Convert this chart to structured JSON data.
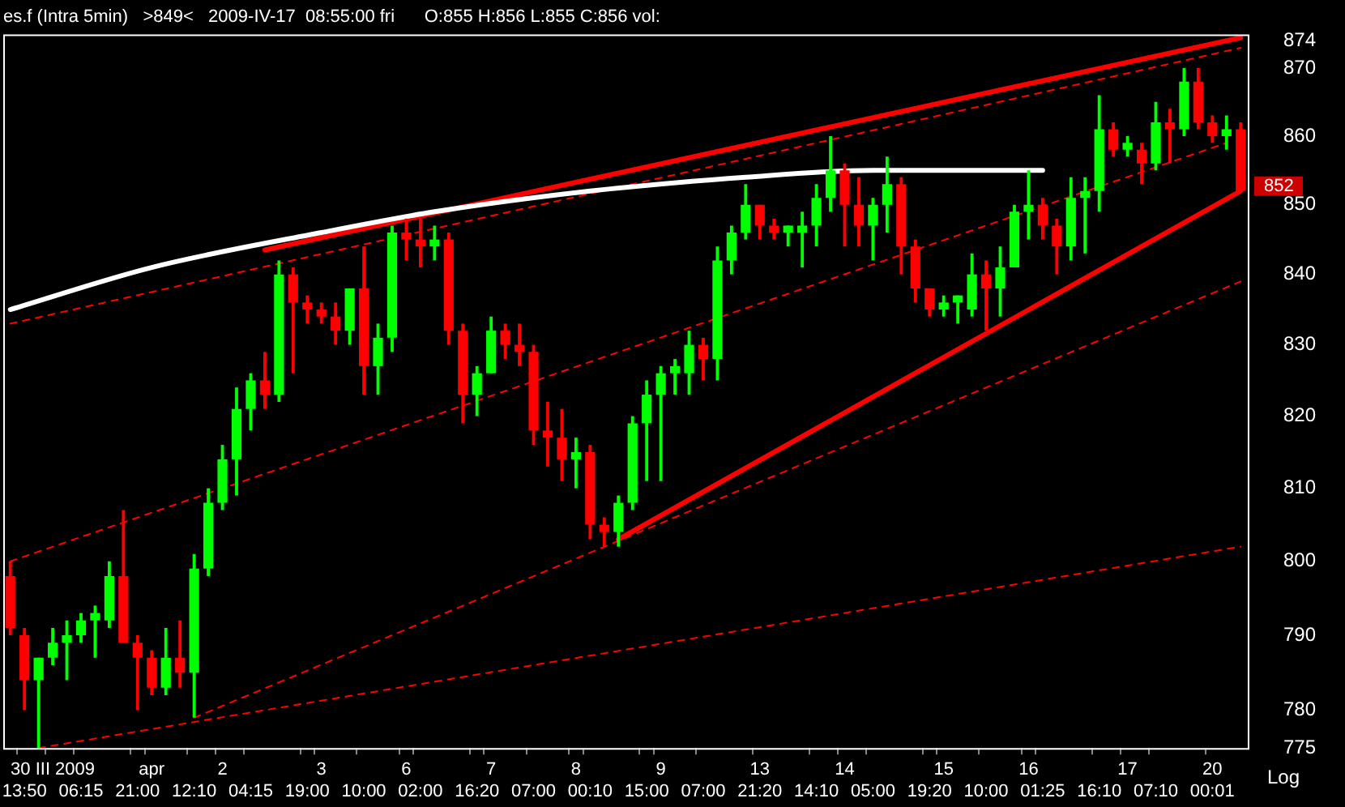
{
  "chart_data": {
    "type": "candlestick",
    "title": "es.f (Intra 5min)   >849<   2009-IV-17  08:55:00 fri      O:855 H:856 L:855 C:856 vol:",
    "categories": [
      null,
      "\n13:50",
      null,
      "30 III 2009\n",
      null,
      "\n06:15",
      null,
      null,
      null,
      "\n21:00",
      "apr\n",
      null,
      null,
      "\n12:10",
      null,
      "2\n",
      null,
      "\n04:15",
      null,
      null,
      null,
      "\n19:00",
      "3\n",
      null,
      null,
      "\n10:00",
      null,
      null,
      "6\n",
      "\n02:00",
      null,
      null,
      null,
      "\n16:20",
      "7\n",
      null,
      null,
      "\n07:00",
      null,
      null,
      "8\n",
      "\n00:10",
      null,
      null,
      null,
      "\n15:00",
      "9\n",
      null,
      null,
      "\n07:00",
      null,
      null,
      null,
      "13\n21:20",
      null,
      null,
      null,
      "\n14:10",
      null,
      "14\n",
      null,
      "\n05:00",
      null,
      null,
      null,
      "\n19:20",
      "15\n",
      null,
      null,
      "\n10:00",
      null,
      null,
      "16\n",
      "\n01:25",
      null,
      null,
      null,
      "\n16:10",
      null,
      "17\n",
      null,
      "\n07:10",
      null,
      null,
      null,
      "20\n00:01",
      null,
      null
    ],
    "ohlc": [
      [
        798,
        800,
        790,
        791
      ],
      [
        790,
        791,
        780,
        784
      ],
      [
        784,
        787,
        775,
        787
      ],
      [
        787,
        791,
        786,
        789
      ],
      [
        789,
        792,
        784,
        790
      ],
      [
        790,
        793,
        789,
        792
      ],
      [
        792,
        794,
        787,
        793
      ],
      [
        792,
        800,
        791,
        798
      ],
      [
        798,
        807,
        789,
        789
      ],
      [
        789,
        790,
        780,
        787
      ],
      [
        787,
        788,
        782,
        783
      ],
      [
        783,
        791,
        782,
        787
      ],
      [
        787,
        792,
        783,
        785
      ],
      [
        785,
        801,
        779,
        799
      ],
      [
        799,
        810,
        798,
        808
      ],
      [
        808,
        816,
        807,
        814
      ],
      [
        814,
        824,
        809,
        821
      ],
      [
        821,
        826,
        818,
        825
      ],
      [
        825,
        829,
        821,
        823
      ],
      [
        823,
        842,
        822,
        840
      ],
      [
        840,
        841,
        826,
        836
      ],
      [
        836,
        837,
        833,
        835
      ],
      [
        835,
        836,
        833,
        834
      ],
      [
        834,
        836,
        830,
        832
      ],
      [
        832,
        838,
        830,
        838
      ],
      [
        838,
        844,
        823,
        827
      ],
      [
        827,
        833,
        823,
        831
      ],
      [
        831,
        847,
        829,
        846
      ],
      [
        846,
        848,
        842,
        845
      ],
      [
        845,
        848,
        841,
        844
      ],
      [
        844,
        847,
        842,
        845
      ],
      [
        845,
        846,
        830,
        832
      ],
      [
        832,
        833,
        819,
        823
      ],
      [
        823,
        827,
        820,
        826
      ],
      [
        826,
        834,
        826,
        832
      ],
      [
        832,
        833,
        828,
        830
      ],
      [
        830,
        833,
        827,
        829
      ],
      [
        829,
        830,
        816,
        818
      ],
      [
        818,
        822,
        813,
        817
      ],
      [
        817,
        821,
        811,
        814
      ],
      [
        814,
        817,
        810,
        815
      ],
      [
        815,
        816,
        803,
        805
      ],
      [
        805,
        806,
        802,
        804
      ],
      [
        804,
        809,
        802,
        808
      ],
      [
        808,
        820,
        807,
        819
      ],
      [
        819,
        825,
        811,
        823
      ],
      [
        823,
        827,
        811,
        826
      ],
      [
        826,
        828,
        823,
        827
      ],
      [
        826,
        832,
        823,
        830
      ],
      [
        830,
        831,
        825,
        828
      ],
      [
        828,
        844,
        825,
        842
      ],
      [
        842,
        847,
        840,
        846
      ],
      [
        846,
        853,
        845,
        850
      ],
      [
        850,
        850,
        845,
        847
      ],
      [
        847,
        848,
        845,
        846
      ],
      [
        846,
        847,
        844,
        847
      ],
      [
        846,
        849,
        841,
        847
      ],
      [
        847,
        853,
        844,
        851
      ],
      [
        851,
        860,
        849,
        855
      ],
      [
        855,
        856,
        844,
        850
      ],
      [
        850,
        854,
        844,
        847
      ],
      [
        847,
        851,
        842,
        850
      ],
      [
        850,
        857,
        846,
        853
      ],
      [
        853,
        854,
        840,
        844
      ],
      [
        844,
        845,
        836,
        838
      ],
      [
        838,
        838,
        834,
        835
      ],
      [
        835,
        837,
        834,
        836
      ],
      [
        836,
        837,
        833,
        837
      ],
      [
        835,
        843,
        834,
        840
      ],
      [
        840,
        842,
        832,
        838
      ],
      [
        838,
        844,
        834,
        841
      ],
      [
        841,
        850,
        841,
        849
      ],
      [
        849,
        855,
        845,
        850
      ],
      [
        850,
        851,
        845,
        847
      ],
      [
        847,
        848,
        840,
        844
      ],
      [
        844,
        854,
        842,
        851
      ],
      [
        851,
        854,
        843,
        852
      ],
      [
        852,
        866,
        849,
        861
      ],
      [
        861,
        862,
        857,
        858
      ],
      [
        858,
        860,
        857,
        859
      ],
      [
        858,
        859,
        853,
        856
      ],
      [
        856,
        865,
        855,
        862
      ],
      [
        862,
        864,
        856,
        861
      ],
      [
        861,
        870,
        860,
        868
      ],
      [
        868,
        870,
        861,
        862
      ],
      [
        862,
        863,
        859,
        860
      ],
      [
        860,
        863,
        858,
        861
      ],
      [
        861,
        862,
        852,
        852
      ]
    ],
    "colors": [
      "#ff0000",
      "#ff0000",
      "#00ff00",
      "#00ff00",
      "#00ff00",
      "#00ff00",
      "#00ff00",
      "#00ff00",
      "#ff0000",
      "#ff0000",
      "#ff0000",
      "#00ff00",
      "#ff0000",
      "#00ff00",
      "#00ff00",
      "#00ff00",
      "#00ff00",
      "#00ff00",
      "#ff0000",
      "#00ff00",
      "#ff0000",
      "#ff0000",
      "#ff0000",
      "#ff0000",
      "#00ff00",
      "#ff0000",
      "#00ff00",
      "#00ff00",
      "#ff0000",
      "#ff0000",
      "#00ff00",
      "#ff0000",
      "#ff0000",
      "#00ff00",
      "#00ff00",
      "#ff0000",
      "#ff0000",
      "#ff0000",
      "#ff0000",
      "#ff0000",
      "#00ff00",
      "#ff0000",
      "#ff0000",
      "#00ff00",
      "#00ff00",
      "#00ff00",
      "#00ff00",
      "#00ff00",
      "#00ff00",
      "#ff0000",
      "#00ff00",
      "#00ff00",
      "#00ff00",
      "#ff0000",
      "#ff0000",
      "#00ff00",
      "#00ff00",
      "#00ff00",
      "#00ff00",
      "#ff0000",
      "#ff0000",
      "#00ff00",
      "#00ff00",
      "#ff0000",
      "#ff0000",
      "#ff0000",
      "#00ff00",
      "#00ff00",
      "#00ff00",
      "#ff0000",
      "#00ff00",
      "#00ff00",
      "#00ff00",
      "#ff0000",
      "#ff0000",
      "#00ff00",
      "#00ff00",
      "#00ff00",
      "#ff0000",
      "#00ff00",
      "#ff0000",
      "#00ff00",
      "#ff0000",
      "#00ff00",
      "#ff0000",
      "#ff0000",
      "#00ff00",
      "#ff0000"
    ],
    "series": [
      {
        "type": "line",
        "color": "#ffffff",
        "line_style": "solid",
        "values": [
          835,
          null,
          null,
          null,
          null,
          null,
          null,
          null,
          null,
          null,
          841,
          null,
          null,
          null,
          null,
          null,
          null,
          null,
          null,
          null,
          null,
          null,
          846,
          null,
          null,
          null,
          null,
          null,
          null,
          null,
          849,
          null,
          null,
          null,
          null,
          null,
          null,
          null,
          null,
          null,
          null,
          852,
          null,
          null,
          null,
          null,
          null,
          null,
          null,
          null,
          null,
          null,
          854,
          null,
          null,
          null,
          null,
          null,
          null,
          null,
          null,
          855,
          null,
          null,
          null,
          null,
          null,
          null,
          null,
          null,
          null,
          null,
          null,
          855,
          null,
          null,
          null,
          null,
          null,
          null,
          null,
          null,
          null,
          null,
          null,
          null,
          null,
          null
        ]
      },
      {
        "type": "line",
        "color": "#ff0000",
        "line_style": "solid",
        "values": [
          null,
          null,
          null,
          null,
          null,
          null,
          null,
          null,
          null,
          null,
          null,
          null,
          null,
          null,
          null,
          null,
          null,
          null,
          843.5,
          null,
          null,
          null,
          null,
          null,
          null,
          null,
          null,
          null,
          null,
          null,
          null,
          null,
          null,
          null,
          null,
          null,
          null,
          null,
          null,
          null,
          null,
          null,
          null,
          null,
          null,
          null,
          null,
          null,
          null,
          null,
          null,
          null,
          null,
          null,
          null,
          null,
          null,
          null,
          null,
          null,
          null,
          null,
          null,
          null,
          null,
          null,
          null,
          null,
          null,
          null,
          null,
          null,
          null,
          null,
          null,
          null,
          null,
          null,
          null,
          null,
          null,
          null,
          null,
          null,
          null,
          null,
          null,
          874.5
        ]
      },
      {
        "type": "line",
        "color": "#ff0000",
        "line_style": "solid",
        "values": [
          null,
          null,
          null,
          null,
          null,
          null,
          null,
          null,
          null,
          null,
          null,
          null,
          null,
          null,
          null,
          null,
          null,
          null,
          null,
          null,
          null,
          null,
          null,
          null,
          null,
          null,
          null,
          null,
          null,
          null,
          null,
          null,
          null,
          null,
          null,
          null,
          null,
          null,
          null,
          null,
          null,
          null,
          null,
          803,
          null,
          null,
          null,
          null,
          null,
          null,
          null,
          null,
          null,
          null,
          null,
          null,
          null,
          null,
          null,
          null,
          null,
          null,
          null,
          null,
          null,
          null,
          null,
          null,
          null,
          null,
          null,
          null,
          null,
          null,
          null,
          null,
          null,
          null,
          null,
          null,
          null,
          null,
          null,
          null,
          null,
          null,
          null,
          852
        ]
      },
      {
        "type": "line",
        "color": "#ff0000",
        "line_style": "dashed",
        "values": [
          833,
          null,
          null,
          null,
          null,
          null,
          null,
          null,
          null,
          null,
          null,
          null,
          null,
          null,
          null,
          null,
          null,
          null,
          null,
          null,
          null,
          null,
          null,
          null,
          null,
          null,
          null,
          null,
          null,
          null,
          null,
          null,
          null,
          null,
          null,
          null,
          null,
          null,
          null,
          null,
          null,
          null,
          null,
          null,
          null,
          null,
          null,
          null,
          null,
          null,
          null,
          null,
          null,
          null,
          null,
          null,
          null,
          null,
          null,
          null,
          null,
          null,
          null,
          null,
          null,
          null,
          null,
          null,
          null,
          null,
          null,
          null,
          null,
          null,
          null,
          null,
          null,
          null,
          null,
          null,
          null,
          null,
          null,
          null,
          null,
          null,
          null,
          873
        ]
      },
      {
        "type": "line",
        "color": "#ff0000",
        "line_style": "dashed",
        "values": [
          800,
          null,
          null,
          null,
          null,
          null,
          null,
          null,
          null,
          null,
          null,
          null,
          null,
          null,
          null,
          null,
          null,
          null,
          null,
          null,
          null,
          null,
          null,
          null,
          null,
          null,
          null,
          null,
          null,
          null,
          null,
          null,
          null,
          null,
          null,
          null,
          null,
          null,
          null,
          null,
          null,
          null,
          null,
          null,
          null,
          null,
          null,
          null,
          null,
          null,
          null,
          null,
          null,
          null,
          null,
          null,
          null,
          null,
          null,
          null,
          null,
          null,
          null,
          null,
          null,
          null,
          null,
          null,
          null,
          null,
          null,
          null,
          null,
          null,
          null,
          null,
          null,
          null,
          null,
          null,
          null,
          null,
          null,
          null,
          null,
          null,
          859,
          null
        ]
      },
      {
        "type": "line",
        "color": "#ff0000",
        "line_style": "dashed",
        "values": [
          null,
          null,
          null,
          null,
          null,
          null,
          null,
          null,
          null,
          null,
          null,
          null,
          null,
          779,
          null,
          null,
          null,
          null,
          null,
          null,
          null,
          null,
          null,
          null,
          null,
          null,
          null,
          null,
          null,
          null,
          null,
          null,
          null,
          null,
          null,
          null,
          null,
          null,
          null,
          null,
          null,
          null,
          null,
          null,
          null,
          null,
          null,
          null,
          null,
          null,
          null,
          null,
          null,
          null,
          null,
          null,
          null,
          null,
          null,
          null,
          null,
          null,
          null,
          null,
          null,
          null,
          null,
          null,
          null,
          null,
          null,
          null,
          null,
          null,
          null,
          null,
          null,
          null,
          null,
          null,
          null,
          null,
          null,
          null,
          null,
          null,
          null,
          839
        ]
      },
      {
        "type": "line",
        "color": "#ff0000",
        "line_style": "dashed",
        "values": [
          null,
          null,
          775,
          null,
          null,
          null,
          null,
          null,
          null,
          null,
          null,
          null,
          null,
          null,
          null,
          null,
          null,
          null,
          null,
          null,
          null,
          null,
          null,
          null,
          null,
          null,
          null,
          null,
          null,
          null,
          null,
          null,
          null,
          null,
          null,
          null,
          null,
          null,
          null,
          null,
          null,
          null,
          null,
          null,
          null,
          null,
          null,
          null,
          null,
          null,
          null,
          null,
          null,
          null,
          null,
          null,
          null,
          null,
          null,
          null,
          null,
          null,
          null,
          null,
          null,
          null,
          null,
          null,
          null,
          null,
          null,
          null,
          null,
          null,
          null,
          null,
          null,
          null,
          null,
          null,
          null,
          null,
          null,
          null,
          null,
          null,
          null,
          802
        ]
      }
    ],
    "ylim": [
      775,
      875
    ],
    "log": true,
    "yticks": [
      775,
      780,
      790,
      800,
      810,
      820,
      830,
      840,
      850,
      860,
      870,
      874
    ],
    "annotations": [
      "852",
      "Log"
    ]
  }
}
